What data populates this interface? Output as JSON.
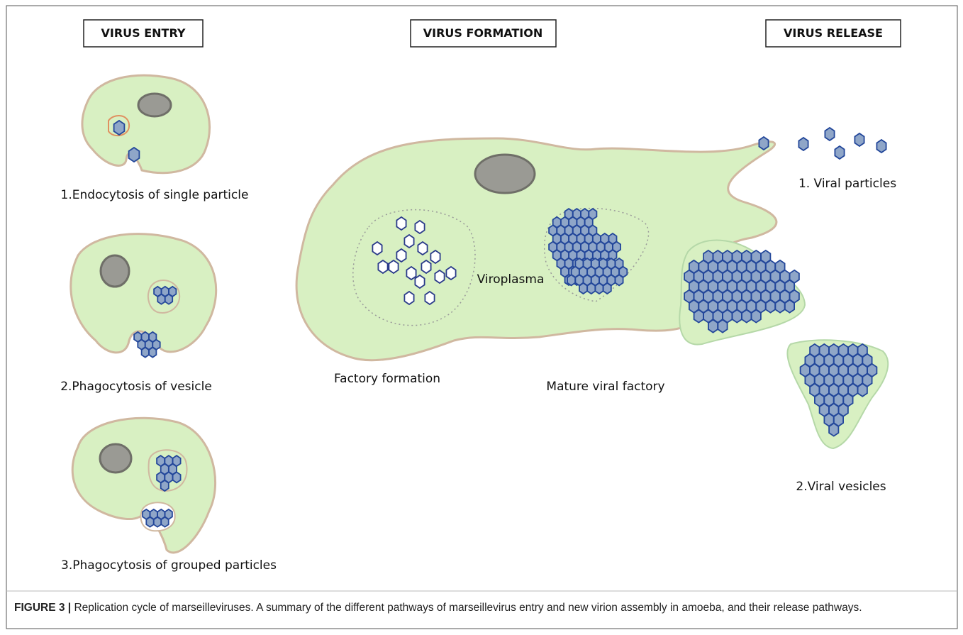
{
  "sections": [
    {
      "title": "VIRUS ENTRY",
      "steps": [
        "1.Endocytosis of single particle",
        "2.Phagocytosis of vesicle",
        "3.Phagocytosis of grouped particles"
      ]
    },
    {
      "title": "VIRUS FORMATION",
      "labels": [
        "Factory formation",
        "Viroplasma",
        "Mature viral factory"
      ]
    },
    {
      "title": "VIRUS RELEASE",
      "steps": [
        "1. Viral particles",
        "2.Viral vesicles"
      ]
    }
  ],
  "caption": {
    "label": "FIGURE 3 |",
    "text": "Replication cycle of marseilleviruses. A summary of the different pathways of marseillevirus entry and new virion assembly in amoeba, and their release pathways."
  }
}
